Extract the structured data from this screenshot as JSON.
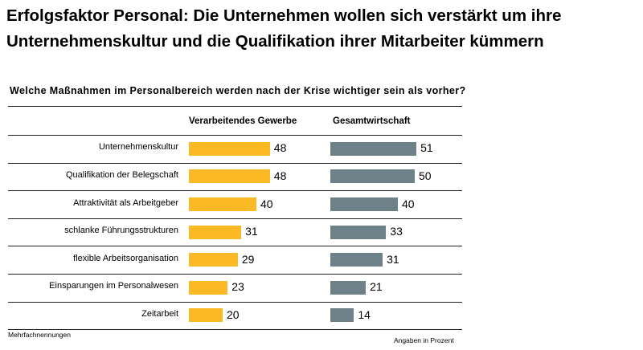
{
  "title": "Erfolgsfaktor Personal: Die Unternehmen wollen sich verstärkt um ihre Unternehmenskultur und die Qualifikation ihrer Mitarbeiter kümmern",
  "chart_data": {
    "type": "bar",
    "title": "Welche Maßnahmen im Personalbereich werden nach der Krise wichtiger sein als vorher?",
    "categories": [
      "Unternehmenskultur",
      "Qualifikation der Belegschaft",
      "Attraktivität als Arbeitgeber",
      "schlanke Führungsstrukturen",
      "flexible Arbeitsorganisation",
      "Einsparungen im Personalwesen",
      "Zeitarbeit"
    ],
    "series": [
      {
        "name": "Verarbeitendes Gewerbe",
        "color": "#FBBA25",
        "values": [
          48,
          48,
          40,
          31,
          29,
          23,
          20
        ]
      },
      {
        "name": "Gesamtwirtschaft",
        "color": "#6E8088",
        "values": [
          51,
          50,
          40,
          33,
          31,
          21,
          14
        ]
      }
    ],
    "orientation": "horizontal",
    "grid": false
  },
  "footnote_left": "Mehrfachnennungen",
  "footnote_right": "Angaben in Prozent"
}
